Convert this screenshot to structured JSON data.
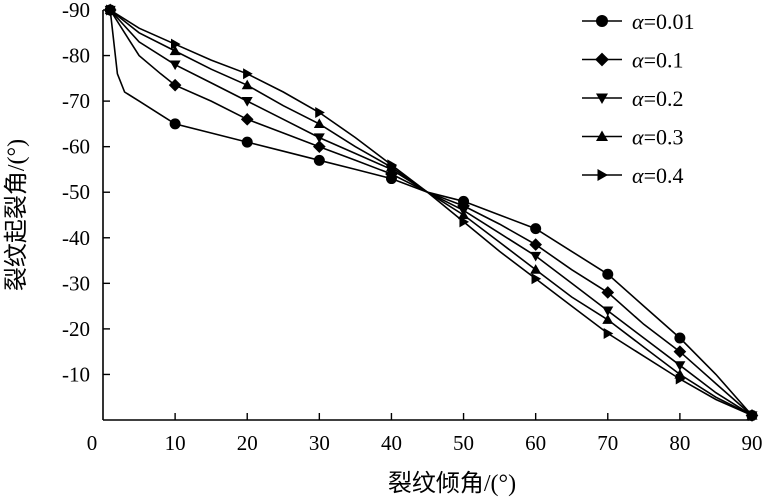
{
  "chart_data": {
    "type": "line",
    "xlabel": "裂纹倾角/(°)",
    "ylabel": "裂纹起裂角/(°)",
    "xlim": [
      0,
      90
    ],
    "ylim": [
      0,
      -90
    ],
    "xticks": [
      0,
      10,
      20,
      30,
      40,
      50,
      60,
      70,
      80,
      90
    ],
    "yticks": [
      -10,
      -20,
      -30,
      -40,
      -50,
      -60,
      -70,
      -80,
      -90
    ],
    "grid": false,
    "legend_position": "top-right",
    "legend_symbol": "α",
    "series": [
      {
        "name": "=0.01",
        "marker": "circle",
        "line_points": [
          [
            1,
            -90
          ],
          [
            2,
            -76
          ],
          [
            3,
            -72
          ],
          [
            5,
            -70
          ],
          [
            8,
            -67
          ],
          [
            10,
            -65
          ],
          [
            15,
            -63
          ],
          [
            20,
            -61
          ],
          [
            25,
            -59
          ],
          [
            30,
            -57
          ],
          [
            35,
            -55
          ],
          [
            40,
            -53
          ],
          [
            45,
            -50
          ],
          [
            50,
            -48
          ],
          [
            55,
            -45
          ],
          [
            60,
            -42
          ],
          [
            65,
            -37
          ],
          [
            70,
            -32
          ],
          [
            75,
            -25
          ],
          [
            80,
            -18
          ],
          [
            85,
            -10
          ],
          [
            90,
            -1
          ]
        ],
        "marker_points": [
          [
            1,
            -90
          ],
          [
            10,
            -65
          ],
          [
            20,
            -61
          ],
          [
            30,
            -57
          ],
          [
            40,
            -53
          ],
          [
            50,
            -48
          ],
          [
            60,
            -42
          ],
          [
            70,
            -32
          ],
          [
            80,
            -18
          ],
          [
            90,
            -1
          ]
        ]
      },
      {
        "name": "=0.1",
        "marker": "diamond",
        "line_points": [
          [
            1,
            -90
          ],
          [
            3,
            -85
          ],
          [
            5,
            -80
          ],
          [
            8,
            -76
          ],
          [
            10,
            -73.5
          ],
          [
            15,
            -70
          ],
          [
            20,
            -66
          ],
          [
            25,
            -63
          ],
          [
            30,
            -60
          ],
          [
            35,
            -57
          ],
          [
            40,
            -54
          ],
          [
            45,
            -50
          ],
          [
            50,
            -47
          ],
          [
            55,
            -43
          ],
          [
            60,
            -38.5
          ],
          [
            65,
            -33
          ],
          [
            70,
            -28
          ],
          [
            75,
            -21
          ],
          [
            80,
            -15
          ],
          [
            85,
            -8
          ],
          [
            90,
            -1
          ]
        ],
        "marker_points": [
          [
            1,
            -90
          ],
          [
            10,
            -73.5
          ],
          [
            20,
            -66
          ],
          [
            30,
            -60
          ],
          [
            40,
            -54
          ],
          [
            50,
            -47
          ],
          [
            60,
            -38.5
          ],
          [
            70,
            -28
          ],
          [
            80,
            -15
          ],
          [
            90,
            -1
          ]
        ]
      },
      {
        "name": "=0.2",
        "marker": "triangle-down",
        "line_points": [
          [
            1,
            -90
          ],
          [
            5,
            -83
          ],
          [
            10,
            -78
          ],
          [
            15,
            -74
          ],
          [
            20,
            -70
          ],
          [
            25,
            -66
          ],
          [
            30,
            -62
          ],
          [
            35,
            -58.5
          ],
          [
            40,
            -55
          ],
          [
            45,
            -50
          ],
          [
            50,
            -46
          ],
          [
            55,
            -41
          ],
          [
            60,
            -36
          ],
          [
            65,
            -30
          ],
          [
            70,
            -24
          ],
          [
            75,
            -18
          ],
          [
            80,
            -12
          ],
          [
            85,
            -6
          ],
          [
            90,
            -1
          ]
        ],
        "marker_points": [
          [
            1,
            -90
          ],
          [
            10,
            -78
          ],
          [
            20,
            -70
          ],
          [
            30,
            -62
          ],
          [
            40,
            -55
          ],
          [
            50,
            -46
          ],
          [
            60,
            -36
          ],
          [
            70,
            -24
          ],
          [
            80,
            -12
          ],
          [
            90,
            -1
          ]
        ]
      },
      {
        "name": "=0.3",
        "marker": "triangle-up",
        "line_points": [
          [
            1,
            -90
          ],
          [
            5,
            -85
          ],
          [
            10,
            -81
          ],
          [
            15,
            -77
          ],
          [
            20,
            -73.5
          ],
          [
            25,
            -69
          ],
          [
            30,
            -65
          ],
          [
            35,
            -60
          ],
          [
            40,
            -55.5
          ],
          [
            45,
            -50
          ],
          [
            50,
            -45
          ],
          [
            55,
            -39
          ],
          [
            60,
            -33
          ],
          [
            65,
            -27
          ],
          [
            70,
            -22
          ],
          [
            75,
            -16
          ],
          [
            80,
            -10
          ],
          [
            85,
            -5
          ],
          [
            90,
            -1
          ]
        ],
        "marker_points": [
          [
            1,
            -90
          ],
          [
            10,
            -81
          ],
          [
            20,
            -73.5
          ],
          [
            30,
            -65
          ],
          [
            40,
            -55.5
          ],
          [
            50,
            -45
          ],
          [
            60,
            -33
          ],
          [
            70,
            -22
          ],
          [
            80,
            -10
          ],
          [
            90,
            -1
          ]
        ]
      },
      {
        "name": "=0.4",
        "marker": "triangle-right",
        "line_points": [
          [
            1,
            -90
          ],
          [
            5,
            -86
          ],
          [
            10,
            -82.5
          ],
          [
            15,
            -79
          ],
          [
            20,
            -76
          ],
          [
            25,
            -72
          ],
          [
            30,
            -67.5
          ],
          [
            35,
            -62
          ],
          [
            40,
            -56
          ],
          [
            45,
            -50
          ],
          [
            50,
            -43.5
          ],
          [
            55,
            -37
          ],
          [
            60,
            -31
          ],
          [
            65,
            -25
          ],
          [
            70,
            -19
          ],
          [
            75,
            -14
          ],
          [
            80,
            -9
          ],
          [
            85,
            -4.5
          ],
          [
            90,
            -1
          ]
        ],
        "marker_points": [
          [
            1,
            -90
          ],
          [
            10,
            -82.5
          ],
          [
            20,
            -76
          ],
          [
            30,
            -67.5
          ],
          [
            40,
            -56
          ],
          [
            50,
            -43.5
          ],
          [
            60,
            -31
          ],
          [
            70,
            -19
          ],
          [
            80,
            -9
          ],
          [
            90,
            -1
          ]
        ]
      }
    ]
  }
}
